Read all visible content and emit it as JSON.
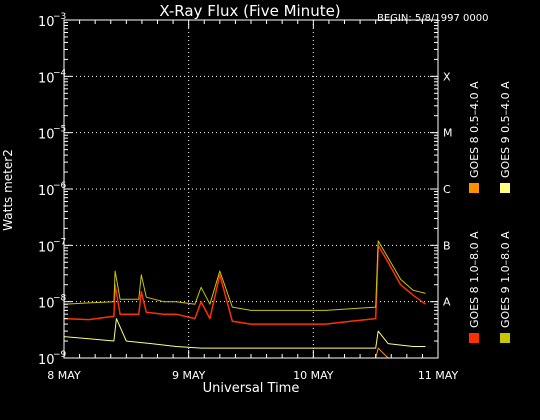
{
  "chart_data": {
    "type": "line",
    "title": "X-Ray Flux (Five Minute)",
    "begin_label": "BEGIN: 5/8/1997 0000",
    "xlabel": "Universal Time",
    "ylabel": "Watts meter2",
    "x_unit": "days since 8 May 1997 00:00 UT",
    "xlim": [
      0,
      3
    ],
    "x_ticks": [
      {
        "value": 0,
        "label": "8 MAY"
      },
      {
        "value": 1,
        "label": "9 MAY"
      },
      {
        "value": 2,
        "label": "10 MAY"
      },
      {
        "value": 3,
        "label": "11 MAY"
      }
    ],
    "y_scale": "log",
    "ylim": [
      1e-09,
      0.001
    ],
    "y_ticks": [
      {
        "value": 1e-09,
        "label": "10",
        "exp": "−9"
      },
      {
        "value": 1e-08,
        "label": "10",
        "exp": "−8"
      },
      {
        "value": 1e-07,
        "label": "10",
        "exp": "−7"
      },
      {
        "value": 1e-06,
        "label": "10",
        "exp": "−6"
      },
      {
        "value": 1e-05,
        "label": "10",
        "exp": "−5"
      },
      {
        "value": 0.0001,
        "label": "10",
        "exp": "−4"
      },
      {
        "value": 0.001,
        "label": "10",
        "exp": "−3"
      }
    ],
    "flare_classes": [
      {
        "label": "A",
        "value": 1e-08
      },
      {
        "label": "B",
        "value": 1e-07
      },
      {
        "label": "C",
        "value": 1e-06
      },
      {
        "label": "M",
        "value": 1e-05
      },
      {
        "label": "X",
        "value": 0.0001
      }
    ],
    "grid": true,
    "legend_position": "right",
    "series": [
      {
        "name": "GOES 8  1.0–8.0 A",
        "color": "#ff3000",
        "x": [
          0.0,
          0.2,
          0.4,
          0.41,
          0.45,
          0.6,
          0.62,
          0.66,
          0.8,
          0.9,
          1.05,
          1.1,
          1.17,
          1.25,
          1.35,
          1.5,
          1.7,
          1.9,
          2.1,
          2.3,
          2.5,
          2.52,
          2.6,
          2.7,
          2.8,
          2.9
        ],
        "y": [
          5e-09,
          4.8e-09,
          5.5e-09,
          2e-08,
          6e-09,
          6e-09,
          1.5e-08,
          6.5e-09,
          6e-09,
          6e-09,
          5e-09,
          1e-08,
          5e-09,
          3e-08,
          4.5e-09,
          4e-09,
          4e-09,
          4e-09,
          4e-09,
          4.5e-09,
          5e-09,
          1e-07,
          5e-08,
          2e-08,
          1.3e-08,
          9e-09
        ]
      },
      {
        "name": "GOES 9  1.0–8.0 A",
        "color": "#c8c800",
        "x": [
          0.0,
          0.2,
          0.4,
          0.41,
          0.45,
          0.6,
          0.62,
          0.66,
          0.8,
          0.9,
          1.05,
          1.1,
          1.17,
          1.25,
          1.35,
          1.5,
          1.7,
          1.9,
          2.1,
          2.3,
          2.5,
          2.52,
          2.6,
          2.7,
          2.8,
          2.9
        ],
        "y": [
          9e-09,
          9.5e-09,
          1e-08,
          3.5e-08,
          1.1e-08,
          1.1e-08,
          3e-08,
          1.2e-08,
          1e-08,
          1e-08,
          9e-09,
          1.8e-08,
          9e-09,
          3.5e-08,
          8e-09,
          7e-09,
          7e-09,
          7e-09,
          7e-09,
          7.5e-09,
          8e-09,
          1.2e-07,
          6e-08,
          2.5e-08,
          1.6e-08,
          1.4e-08
        ]
      },
      {
        "name": "GOES 8  0.5–4.0 A",
        "color": "#ff9000",
        "x": [
          0.4,
          0.45,
          1.2,
          1.3,
          2.5,
          2.52,
          2.6
        ],
        "y": [
          1e-09,
          1e-09,
          1e-09,
          1e-09,
          1e-09,
          1.5e-09,
          1e-09
        ]
      },
      {
        "name": "GOES 9  0.5–4.0 A",
        "color": "#ffff80",
        "x": [
          0.0,
          0.2,
          0.4,
          0.42,
          0.5,
          0.7,
          0.9,
          1.1,
          1.3,
          1.5,
          1.7,
          1.9,
          2.1,
          2.3,
          2.5,
          2.52,
          2.6,
          2.8,
          2.9
        ],
        "y": [
          2.4e-09,
          2.2e-09,
          2e-09,
          5e-09,
          2e-09,
          1.8e-09,
          1.6e-09,
          1.5e-09,
          1.5e-09,
          1.5e-09,
          1.5e-09,
          1.5e-09,
          1.5e-09,
          1.5e-09,
          1.5e-09,
          3e-09,
          1.8e-09,
          1.6e-09,
          1.6e-09
        ]
      }
    ]
  }
}
